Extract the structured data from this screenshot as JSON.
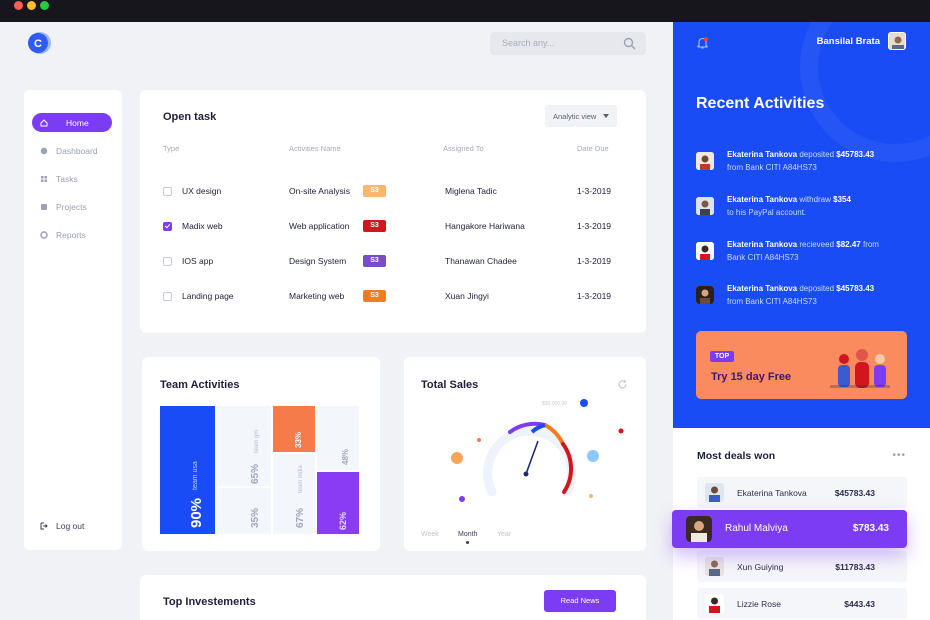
{
  "search": {
    "placeholder": "Search any..."
  },
  "sidebar": {
    "items": [
      {
        "label": "Home",
        "icon": "home-icon"
      },
      {
        "label": "Dashboard",
        "icon": "dashboard-icon"
      },
      {
        "label": "Tasks",
        "icon": "tasks-icon"
      },
      {
        "label": "Projects",
        "icon": "projects-icon"
      },
      {
        "label": "Reports",
        "icon": "reports-icon"
      }
    ],
    "logout": "Log out"
  },
  "open_task": {
    "title": "Open task",
    "view_label": "Analytic view",
    "columns": [
      "Type",
      "Activities Name",
      "Assigned To",
      "Date Due"
    ],
    "rows": [
      {
        "type": "UX design",
        "activity": "On-site Analysis",
        "badge": "S3",
        "badge_color": "#f8b66e",
        "assigned": "Miglena Tadic",
        "date": "1-3-2019",
        "checked": false
      },
      {
        "type": "Madix web",
        "activity": "Web application",
        "badge": "S3",
        "badge_color": "#d2161d",
        "assigned": "Hangakore Hariwana",
        "date": "1-3-2019",
        "checked": true
      },
      {
        "type": "IOS app",
        "activity": "Design System",
        "badge": "S3",
        "badge_color": "#7b4cc7",
        "assigned": "Thanawan Chadee",
        "date": "1-3-2019",
        "checked": false
      },
      {
        "type": "Landing page",
        "activity": "Marketing web",
        "badge": "S3",
        "badge_color": "#f57b21",
        "assigned": "Xuan Jingyi",
        "date": "1-3-2019",
        "checked": false
      }
    ]
  },
  "team_activities": {
    "title": "Team Activities",
    "tiles": [
      {
        "value": "90%",
        "label": "team usa",
        "color": "#1a4cf5"
      },
      {
        "value": "65%",
        "label": "team gm"
      },
      {
        "value": "35%",
        "label": ""
      },
      {
        "value": "33%",
        "label": "",
        "color": "#f57b4a"
      },
      {
        "value": "67%",
        "label": "team india"
      },
      {
        "value": "48%",
        "label": ""
      },
      {
        "value": "62%",
        "label": "",
        "color": "#8a3cf4"
      }
    ]
  },
  "total_sales": {
    "title": "Total Sales",
    "gauge_label": "$30,000.00",
    "tabs": [
      "Week",
      "Month",
      "Year"
    ],
    "active_tab": "Month"
  },
  "investments": {
    "title": "Top Investements",
    "button": "Read News"
  },
  "user": {
    "name": "Bansilal Brata"
  },
  "recent": {
    "title": "Recent Activities",
    "items": [
      {
        "name": "Ekaterina Tankova",
        "action": "deposited",
        "amount": "$45783.43",
        "line2": "from Bank CITI A84HS73"
      },
      {
        "name": "Ekaterina Tankova",
        "action": "withdraw",
        "amount": "$354",
        "line2": "to his PayPal account."
      },
      {
        "name": "Ekaterina Tankova",
        "action": "recieveed",
        "amount": "$82.47",
        "suffix": "from",
        "line2": "Bank CITI A84HS73"
      },
      {
        "name": "Ekaterina Tankova",
        "action": "deposited",
        "amount": "$45783.43",
        "line2": "from Bank CITI A84HS73"
      }
    ]
  },
  "promo": {
    "tag": "TOP",
    "text": "Try 15 day Free"
  },
  "deals": {
    "title": "Most deals won",
    "more": "•••",
    "items": [
      {
        "name": "Ekaterina Tankova",
        "amount": "$45783.43"
      },
      {
        "name": "Rahul Malviya",
        "amount": "$783.43",
        "highlight": true
      },
      {
        "name": "Xun Guiying",
        "amount": "$11783.43"
      },
      {
        "name": "Lizzie Rose",
        "amount": "$443.43"
      }
    ]
  },
  "colors": {
    "primary": "#1a4cf5",
    "purple": "#7c3cf4",
    "orange": "#f98b5f"
  }
}
